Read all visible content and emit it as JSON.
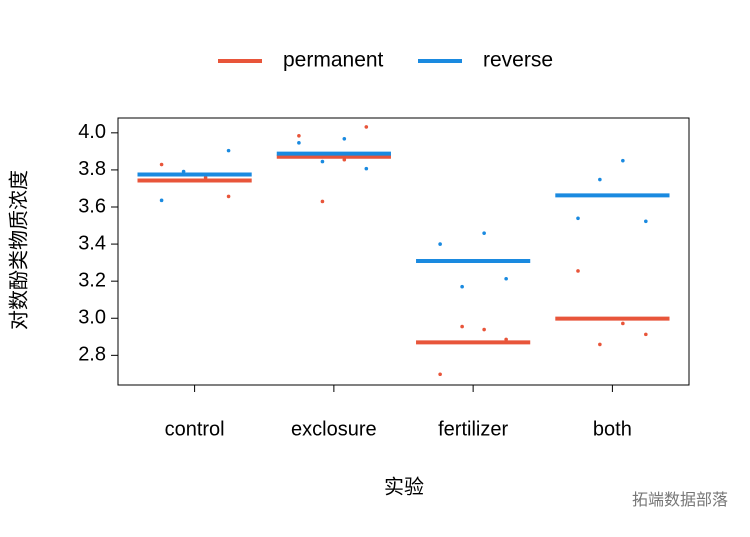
{
  "chart_data": {
    "type": "strip",
    "xlabel": "实验",
    "ylabel": "对数酚类物质浓度",
    "xlim": [
      0.45,
      4.55
    ],
    "xticks": [
      {
        "value": 1,
        "label": "control"
      },
      {
        "value": 2,
        "label": "exclosure"
      },
      {
        "value": 3,
        "label": "fertilizer"
      },
      {
        "value": 4,
        "label": "both"
      }
    ],
    "ylim": [
      2.64,
      4.08
    ],
    "yticks": [
      {
        "value": 2.8,
        "label": "2.8"
      },
      {
        "value": 3.0,
        "label": "3.0"
      },
      {
        "value": 3.2,
        "label": "3.2"
      },
      {
        "value": 3.4,
        "label": "3.4"
      },
      {
        "value": 3.6,
        "label": "3.6"
      },
      {
        "value": 3.8,
        "label": "3.8"
      },
      {
        "value": 4.0,
        "label": "4.0"
      }
    ],
    "legend": "top",
    "series": [
      {
        "name": "permanent",
        "color": "#e8553a",
        "means": [
          3.743,
          3.871,
          2.87,
          2.998
        ],
        "x": [
          0.763,
          1.079,
          1.244,
          1.749,
          2.075,
          1.918,
          2.233,
          2.921,
          3.079,
          2.763,
          3.237,
          3.753,
          4.075,
          4.24,
          3.91
        ],
        "y": [
          3.829,
          3.759,
          3.657,
          3.984,
          3.855,
          3.63,
          4.032,
          2.955,
          2.939,
          2.698,
          2.886,
          3.255,
          2.972,
          2.913,
          2.859
        ]
      },
      {
        "name": "reverse",
        "color": "#1a8ae0",
        "means": [
          3.775,
          3.888,
          3.309,
          3.663
        ],
        "x": [
          0.763,
          0.921,
          1.244,
          1.749,
          2.075,
          1.918,
          2.233,
          2.763,
          3.079,
          2.921,
          3.237,
          3.753,
          3.91,
          4.075,
          4.24
        ],
        "y": [
          3.636,
          3.791,
          3.904,
          3.946,
          3.968,
          3.845,
          3.807,
          3.4,
          3.459,
          3.17,
          3.213,
          3.539,
          3.748,
          3.85,
          3.523
        ]
      }
    ],
    "watermark": "拓端数据部落"
  }
}
